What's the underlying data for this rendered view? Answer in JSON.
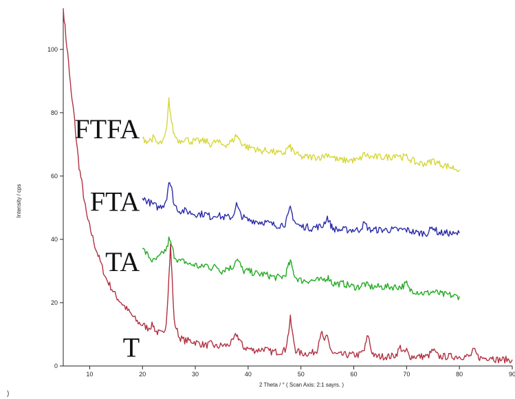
{
  "chart_data": {
    "type": "line",
    "title": "",
    "xlabel": "2 Theta / °  ( Scan Axis: 2:1 sayrs. )",
    "ylabel": "Intensity / cps",
    "xlim": [
      5,
      90
    ],
    "ylim": [
      0,
      113
    ],
    "x_ticks": [
      "10",
      "20",
      "30",
      "40",
      "50",
      "60",
      "70",
      "80",
      "90"
    ],
    "y_ticks": [
      "0",
      "20",
      "40",
      "60",
      "80",
      "100"
    ],
    "grid": false,
    "legend": "none",
    "series": [
      {
        "name": "T",
        "color": "#b03040",
        "points": [
          [
            5,
            113
          ],
          [
            5.5,
            104
          ],
          [
            6,
            96
          ],
          [
            6.5,
            86
          ],
          [
            7,
            80
          ],
          [
            7.5,
            71
          ],
          [
            8,
            63
          ],
          [
            8.5,
            58
          ],
          [
            9,
            52
          ],
          [
            9.5,
            47
          ],
          [
            10,
            44
          ],
          [
            11,
            38
          ],
          [
            12,
            33
          ],
          [
            13,
            28
          ],
          [
            14,
            25
          ],
          [
            15,
            22
          ],
          [
            16,
            20
          ],
          [
            17,
            18
          ],
          [
            18,
            16
          ],
          [
            19,
            14
          ],
          [
            20,
            13
          ],
          [
            21,
            12
          ],
          [
            22,
            13
          ],
          [
            22.5,
            11
          ],
          [
            23,
            10.5
          ],
          [
            24,
            10
          ],
          [
            24.5,
            14
          ],
          [
            25,
            28
          ],
          [
            25.3,
            38
          ],
          [
            25.6,
            28
          ],
          [
            26,
            14
          ],
          [
            27,
            9
          ],
          [
            28,
            8
          ],
          [
            29,
            8
          ],
          [
            30,
            7.5
          ],
          [
            31,
            7
          ],
          [
            32,
            6.5
          ],
          [
            33,
            7
          ],
          [
            34,
            6
          ],
          [
            35,
            6.5
          ],
          [
            36,
            6.5
          ],
          [
            37,
            7.5
          ],
          [
            37.8,
            10
          ],
          [
            38.5,
            8
          ],
          [
            39,
            6
          ],
          [
            40,
            5.5
          ],
          [
            41,
            5
          ],
          [
            42,
            5
          ],
          [
            43,
            5.5
          ],
          [
            44,
            4.5
          ],
          [
            45,
            4.5
          ],
          [
            46,
            4.5
          ],
          [
            47,
            5
          ],
          [
            47.5,
            9
          ],
          [
            48,
            15
          ],
          [
            48.5,
            9
          ],
          [
            49,
            5
          ],
          [
            50,
            4
          ],
          [
            51,
            4
          ],
          [
            52,
            4
          ],
          [
            53,
            5
          ],
          [
            53.8,
            11
          ],
          [
            54.3,
            8
          ],
          [
            55,
            9
          ],
          [
            55.5,
            6
          ],
          [
            56,
            4
          ],
          [
            57,
            3.5
          ],
          [
            58,
            3.5
          ],
          [
            59,
            3.5
          ],
          [
            60,
            3.5
          ],
          [
            61,
            3.5
          ],
          [
            62,
            5
          ],
          [
            62.7,
            10
          ],
          [
            63.3,
            5
          ],
          [
            64,
            3
          ],
          [
            65,
            3
          ],
          [
            66,
            3
          ],
          [
            67,
            3
          ],
          [
            68,
            3.5
          ],
          [
            68.8,
            6
          ],
          [
            69.5,
            4
          ],
          [
            70,
            5
          ],
          [
            70.5,
            3
          ],
          [
            71,
            3
          ],
          [
            72,
            3
          ],
          [
            73,
            3
          ],
          [
            74,
            3
          ],
          [
            75,
            5
          ],
          [
            76,
            3
          ],
          [
            77,
            3
          ],
          [
            78,
            3
          ],
          [
            79,
            3
          ],
          [
            80,
            3
          ],
          [
            81,
            3
          ],
          [
            82,
            3
          ],
          [
            82.7,
            5
          ],
          [
            83.5,
            3
          ],
          [
            84,
            2.5
          ],
          [
            85,
            2.5
          ],
          [
            86,
            3
          ],
          [
            86.5,
            2.5
          ],
          [
            87,
            2
          ],
          [
            88,
            2
          ],
          [
            89,
            2
          ],
          [
            90,
            2
          ]
        ]
      },
      {
        "name": "TA",
        "color": "#22aa22",
        "points": [
          [
            20,
            37
          ],
          [
            21,
            35
          ],
          [
            22,
            33
          ],
          [
            23,
            34
          ],
          [
            24,
            36
          ],
          [
            24.6,
            37
          ],
          [
            25,
            40
          ],
          [
            25.5,
            38
          ],
          [
            26,
            35
          ],
          [
            27,
            33
          ],
          [
            28,
            33
          ],
          [
            29,
            32
          ],
          [
            30,
            32
          ],
          [
            31,
            31
          ],
          [
            32,
            32
          ],
          [
            33,
            31
          ],
          [
            34,
            31.5
          ],
          [
            35,
            30
          ],
          [
            36,
            31
          ],
          [
            37,
            31
          ],
          [
            37.8,
            34
          ],
          [
            38.5,
            32
          ],
          [
            39,
            30
          ],
          [
            40,
            30
          ],
          [
            41,
            29.5
          ],
          [
            42,
            29
          ],
          [
            43,
            29
          ],
          [
            44,
            28.5
          ],
          [
            45,
            28
          ],
          [
            46,
            28
          ],
          [
            47,
            28.5
          ],
          [
            47.5,
            31
          ],
          [
            48,
            33
          ],
          [
            48.5,
            30
          ],
          [
            49,
            28
          ],
          [
            50,
            27
          ],
          [
            51,
            27
          ],
          [
            52,
            27
          ],
          [
            53,
            27
          ],
          [
            54,
            27
          ],
          [
            55,
            28
          ],
          [
            55.5,
            27.5
          ],
          [
            56,
            26
          ],
          [
            57,
            26
          ],
          [
            58,
            26
          ],
          [
            59,
            25.5
          ],
          [
            60,
            25
          ],
          [
            61,
            25
          ],
          [
            62,
            26
          ],
          [
            63,
            25
          ],
          [
            64,
            25
          ],
          [
            65,
            25
          ],
          [
            66,
            25
          ],
          [
            67,
            25
          ],
          [
            68,
            25
          ],
          [
            69,
            25
          ],
          [
            70,
            26
          ],
          [
            70.5,
            24
          ],
          [
            71,
            24
          ],
          [
            72,
            23.5
          ],
          [
            73,
            23
          ],
          [
            74,
            23
          ],
          [
            75,
            23.5
          ],
          [
            76,
            23
          ],
          [
            77,
            22.5
          ],
          [
            78,
            22.5
          ],
          [
            79,
            22
          ],
          [
            80,
            22
          ]
        ]
      },
      {
        "name": "FTA",
        "color": "#2a2aa8",
        "points": [
          [
            20,
            53
          ],
          [
            21,
            52
          ],
          [
            22,
            51
          ],
          [
            23,
            50
          ],
          [
            24,
            51
          ],
          [
            24.6,
            53
          ],
          [
            25,
            59
          ],
          [
            25.5,
            56
          ],
          [
            26,
            51
          ],
          [
            27,
            49
          ],
          [
            28,
            49
          ],
          [
            29,
            48.5
          ],
          [
            30,
            48
          ],
          [
            31,
            48
          ],
          [
            32,
            48
          ],
          [
            33,
            47
          ],
          [
            34,
            48
          ],
          [
            35,
            47
          ],
          [
            36,
            47
          ],
          [
            37,
            47
          ],
          [
            37.8,
            51
          ],
          [
            38.5,
            48
          ],
          [
            39,
            47
          ],
          [
            40,
            46
          ],
          [
            41,
            46
          ],
          [
            42,
            45.5
          ],
          [
            43,
            45.5
          ],
          [
            44,
            45
          ],
          [
            45,
            44.5
          ],
          [
            46,
            44.5
          ],
          [
            47,
            45
          ],
          [
            47.5,
            47
          ],
          [
            48,
            50
          ],
          [
            48.5,
            47
          ],
          [
            49,
            45
          ],
          [
            50,
            44
          ],
          [
            51,
            44
          ],
          [
            52,
            43.5
          ],
          [
            53,
            44
          ],
          [
            54,
            44
          ],
          [
            55,
            47
          ],
          [
            55.5,
            45
          ],
          [
            56,
            43.5
          ],
          [
            57,
            43
          ],
          [
            58,
            43
          ],
          [
            59,
            43
          ],
          [
            60,
            43
          ],
          [
            61,
            43
          ],
          [
            62,
            45
          ],
          [
            63,
            43
          ],
          [
            64,
            43
          ],
          [
            65,
            43
          ],
          [
            66,
            43
          ],
          [
            67,
            43
          ],
          [
            68,
            43
          ],
          [
            69,
            43
          ],
          [
            70,
            43
          ],
          [
            71,
            42.5
          ],
          [
            72,
            42
          ],
          [
            73,
            42
          ],
          [
            74,
            42
          ],
          [
            75,
            44
          ],
          [
            76,
            42
          ],
          [
            77,
            42
          ],
          [
            78,
            42
          ],
          [
            79,
            41.5
          ],
          [
            80,
            42
          ]
        ]
      },
      {
        "name": "FTFA",
        "color": "#d6d63a",
        "points": [
          [
            20,
            72
          ],
          [
            21,
            71
          ],
          [
            22,
            72
          ],
          [
            23,
            70
          ],
          [
            24,
            71
          ],
          [
            24.6,
            75
          ],
          [
            25,
            84
          ],
          [
            25.5,
            77
          ],
          [
            26,
            73
          ],
          [
            27,
            71
          ],
          [
            28,
            72
          ],
          [
            29,
            71
          ],
          [
            30,
            71
          ],
          [
            31,
            71
          ],
          [
            32,
            71
          ],
          [
            33,
            70
          ],
          [
            34,
            71
          ],
          [
            35,
            70
          ],
          [
            36,
            70
          ],
          [
            37,
            71
          ],
          [
            37.8,
            73
          ],
          [
            38.5,
            71
          ],
          [
            39,
            70
          ],
          [
            40,
            69
          ],
          [
            41,
            69
          ],
          [
            42,
            68
          ],
          [
            43,
            68
          ],
          [
            44,
            68
          ],
          [
            45,
            67.5
          ],
          [
            46,
            67
          ],
          [
            47,
            67.5
          ],
          [
            47.5,
            69
          ],
          [
            48,
            69
          ],
          [
            48.5,
            68
          ],
          [
            49,
            67
          ],
          [
            50,
            66
          ],
          [
            51,
            66
          ],
          [
            52,
            66
          ],
          [
            53,
            66
          ],
          [
            54,
            66
          ],
          [
            55,
            67
          ],
          [
            56,
            66
          ],
          [
            57,
            65
          ],
          [
            58,
            65
          ],
          [
            59,
            65
          ],
          [
            60,
            65
          ],
          [
            61,
            65
          ],
          [
            62,
            67
          ],
          [
            63,
            66
          ],
          [
            64,
            66
          ],
          [
            65,
            66
          ],
          [
            66,
            66
          ],
          [
            67,
            66
          ],
          [
            68,
            67
          ],
          [
            69,
            66
          ],
          [
            70,
            66
          ],
          [
            71,
            65
          ],
          [
            72,
            64
          ],
          [
            73,
            64
          ],
          [
            74,
            64
          ],
          [
            75,
            65
          ],
          [
            76,
            64
          ],
          [
            77,
            63.5
          ],
          [
            78,
            63
          ],
          [
            79,
            62.5
          ],
          [
            80,
            62
          ]
        ]
      }
    ],
    "series_labels": [
      {
        "text": "FTFA",
        "x": 20,
        "y": 75
      },
      {
        "text": "FTA",
        "x": 20,
        "y": 52
      },
      {
        "text": "TA",
        "x": 20,
        "y": 33
      },
      {
        "text": "T",
        "x": 20,
        "y": 6
      }
    ]
  },
  "corner_mark": ")"
}
